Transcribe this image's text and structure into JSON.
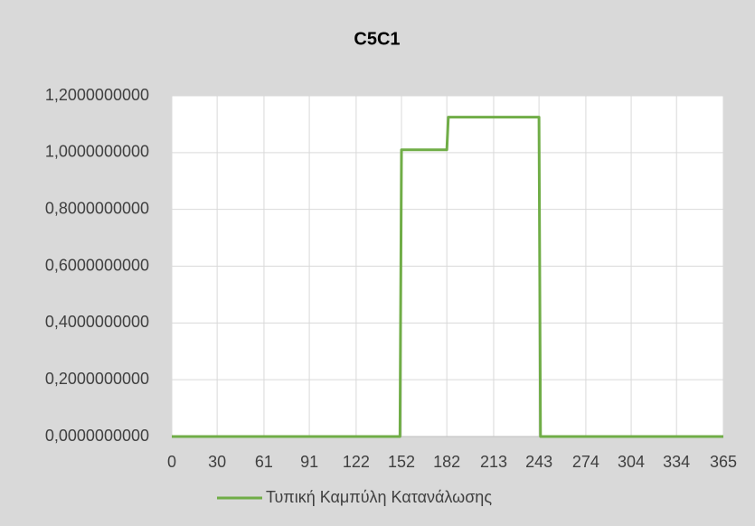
{
  "chart_data": {
    "type": "line",
    "title": "C5C1",
    "x": [
      0,
      151,
      152,
      182,
      183,
      243,
      244,
      365
    ],
    "series": [
      {
        "name": "Τυπική Καμπύλη Κατανάλωσης",
        "color": "#70ad47",
        "values": [
          0,
          0,
          1.01,
          1.01,
          1.125,
          1.125,
          0,
          0
        ]
      }
    ],
    "xlim": [
      0,
      365
    ],
    "xticks": [
      0,
      30,
      61,
      91,
      122,
      152,
      182,
      213,
      243,
      274,
      304,
      334,
      365
    ],
    "ylim": [
      0,
      1.2
    ],
    "yticks": [
      {
        "value": 0,
        "label": "0,0000000000"
      },
      {
        "value": 0.2,
        "label": "0,2000000000"
      },
      {
        "value": 0.4,
        "label": "0,4000000000"
      },
      {
        "value": 0.6,
        "label": "0,6000000000"
      },
      {
        "value": 0.8,
        "label": "0,8000000000"
      },
      {
        "value": 1.0,
        "label": "1,0000000000"
      },
      {
        "value": 1.2,
        "label": "1,2000000000"
      }
    ],
    "grid": true,
    "legend": "bottom"
  }
}
